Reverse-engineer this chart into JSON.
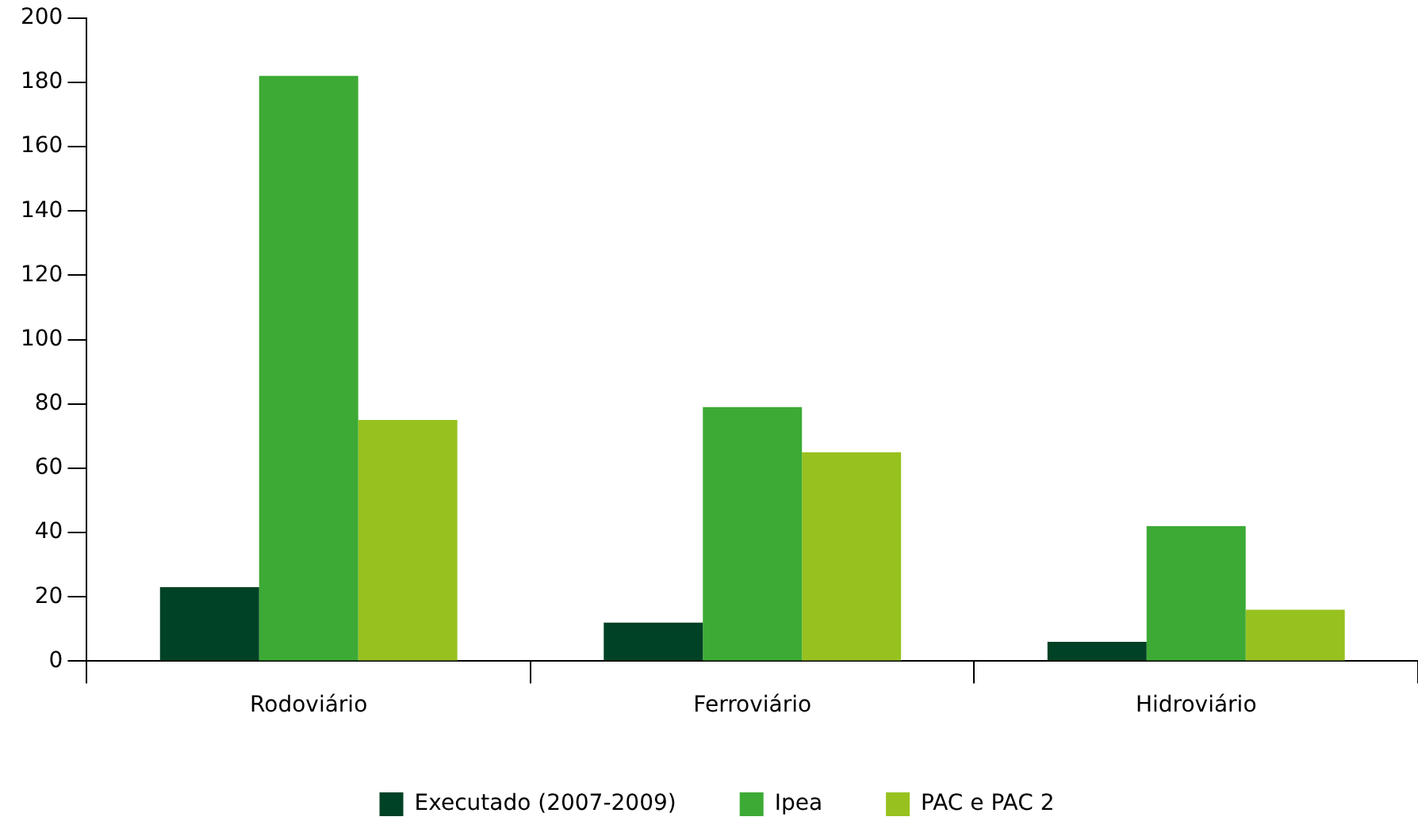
{
  "chart_data": {
    "type": "bar",
    "categories": [
      "Rodoviário",
      "Ferroviário",
      "Hidroviário"
    ],
    "series": [
      {
        "name": "Executado (2007-2009)",
        "color": "#004225",
        "values": [
          23,
          12,
          6
        ]
      },
      {
        "name": "Ipea",
        "color": "#3daa35",
        "values": [
          182,
          79,
          42
        ]
      },
      {
        "name": "PAC e PAC 2",
        "color": "#97c11f",
        "values": [
          75,
          65,
          16
        ]
      }
    ],
    "ylim": [
      0,
      200
    ],
    "yticks": [
      0,
      20,
      40,
      60,
      80,
      100,
      120,
      140,
      160,
      180,
      200
    ],
    "grid": false,
    "legend": "bottom"
  }
}
